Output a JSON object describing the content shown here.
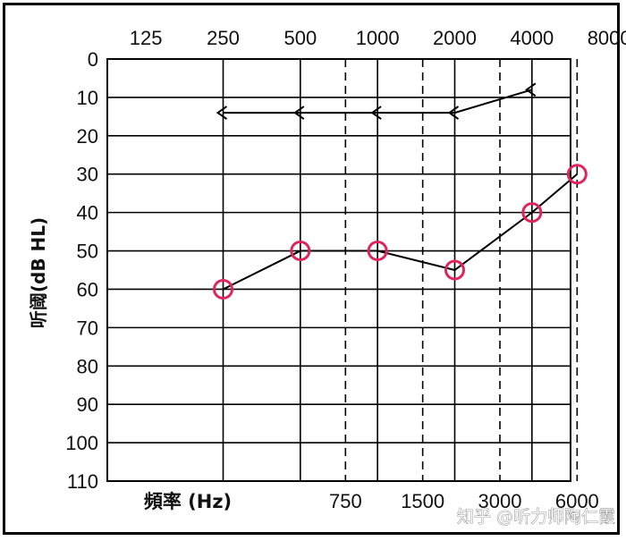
{
  "chart_data": {
    "type": "line",
    "title": "",
    "xlabel": "頻率 (Hz)",
    "ylabel": "听阈(dB HL)",
    "x_ticks_top": [
      "125",
      "250",
      "500",
      "1000",
      "2000",
      "4000",
      "8000"
    ],
    "x_ticks_bottom": [
      "750",
      "1500",
      "3000",
      "6000"
    ],
    "y_ticks": [
      "0",
      "10",
      "20",
      "30",
      "40",
      "50",
      "60",
      "70",
      "80",
      "90",
      "100",
      "110"
    ],
    "ylim": [
      0,
      110
    ],
    "y_inverted": true,
    "grid": true,
    "series": [
      {
        "marker": "<",
        "color": "#000000",
        "x": [
          250,
          500,
          1000,
          2000,
          4000
        ],
        "values": [
          14,
          14,
          14,
          14,
          8
        ]
      },
      {
        "marker": "o",
        "color": "#e0245e",
        "x": [
          250,
          500,
          1000,
          2000,
          4000,
          6000
        ],
        "values": [
          60,
          50,
          50,
          55,
          40,
          30
        ]
      }
    ]
  },
  "watermark": "知乎 @听力师陶仁霞"
}
